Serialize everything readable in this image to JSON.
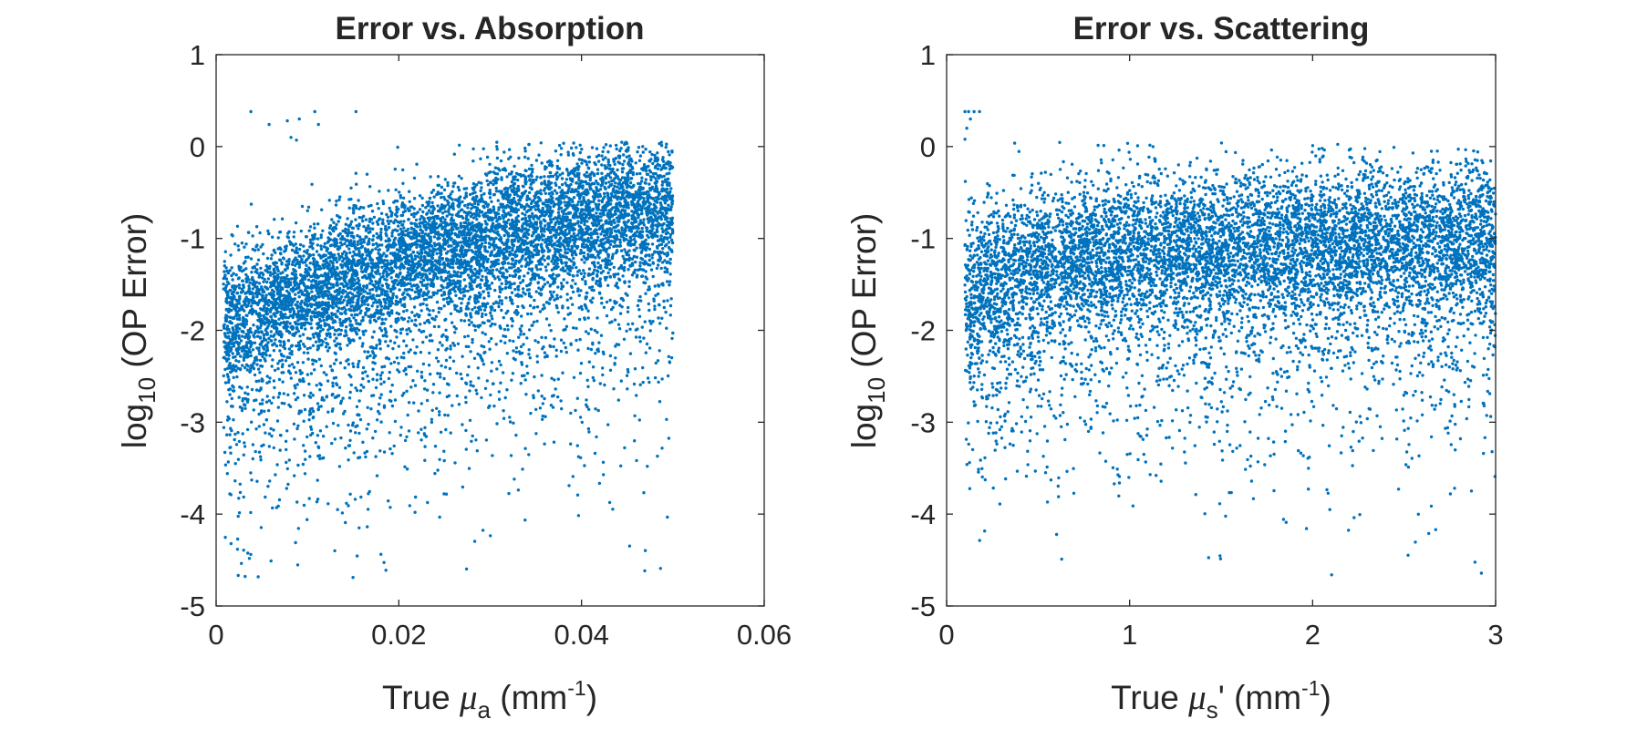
{
  "chart_data": [
    {
      "type": "scatter",
      "title": "Error vs. Absorption",
      "xlabel": {
        "prefix": "True ",
        "symbol": "μ",
        "subscript": "a",
        "unit_open": " (mm",
        "unit_sup": "-1",
        "unit_close": ")"
      },
      "ylabel": {
        "prefix": "log",
        "subscript": "10",
        "suffix": " (OP Error)"
      },
      "xlim": [
        0,
        0.06
      ],
      "ylim": [
        -5,
        1
      ],
      "xticks": [
        "0",
        "0.02",
        "0.04",
        "0.06"
      ],
      "yticks": [
        "-5",
        "-4",
        "-3",
        "-2",
        "-1",
        "0",
        "1"
      ],
      "grid": false,
      "color": "#0072BD",
      "outliers": [
        [
          0.0038,
          0.38
        ],
        [
          0.0058,
          0.24
        ],
        [
          0.0078,
          0.28
        ],
        [
          0.0082,
          0.1
        ],
        [
          0.0088,
          0.07
        ],
        [
          0.0091,
          0.3
        ],
        [
          0.0108,
          0.38
        ],
        [
          0.0112,
          0.24
        ],
        [
          0.0153,
          0.38
        ]
      ],
      "trend": {
        "n_points": 8000,
        "x_range": [
          0.0008,
          0.05
        ],
        "center": [
          [
            0.0008,
            -1.9
          ],
          [
            0.01,
            -1.55
          ],
          [
            0.02,
            -1.2
          ],
          [
            0.03,
            -0.95
          ],
          [
            0.04,
            -0.75
          ],
          [
            0.05,
            -0.6
          ]
        ],
        "spread": 0.35,
        "low_tail_min": -4.7
      }
    },
    {
      "type": "scatter",
      "title": "Error vs. Scattering",
      "xlabel": {
        "prefix": "True ",
        "symbol": "μ",
        "subscript": "s",
        "prime": "'",
        "unit_open": " (mm",
        "unit_sup": "-1",
        "unit_close": ")"
      },
      "ylabel": {
        "prefix": "log",
        "subscript": "10",
        "suffix": " (OP Error)"
      },
      "xlim": [
        0,
        3
      ],
      "ylim": [
        -5,
        1
      ],
      "xticks": [
        "0",
        "1",
        "2",
        "3"
      ],
      "yticks": [
        "-5",
        "-4",
        "-3",
        "-2",
        "-1",
        "0",
        "1"
      ],
      "grid": false,
      "color": "#0072BD",
      "outliers": [
        [
          0.1,
          0.38
        ],
        [
          0.12,
          0.38
        ],
        [
          0.11,
          0.2
        ],
        [
          0.1,
          0.08
        ],
        [
          0.15,
          0.38
        ],
        [
          0.18,
          0.38
        ],
        [
          0.13,
          0.3
        ]
      ],
      "trend": {
        "n_points": 8000,
        "x_range": [
          0.1,
          3.0
        ],
        "center": [
          [
            0.1,
            -1.6
          ],
          [
            0.5,
            -1.2
          ],
          [
            1.0,
            -1.1
          ],
          [
            2.0,
            -1.05
          ],
          [
            3.0,
            -1.0
          ]
        ],
        "spread": 0.4,
        "low_tail_min": -4.7
      }
    }
  ]
}
